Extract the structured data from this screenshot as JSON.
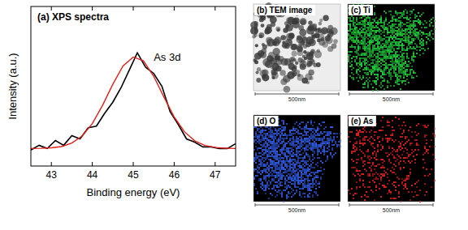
{
  "chart_data": {
    "type": "line",
    "title": "(a) XPS spectra",
    "annotation": "As 3d",
    "x_label": "Binding energy (eV)",
    "y_label": "Intensity (a.u.)",
    "xlim": [
      42.5,
      47.5
    ],
    "xticks": [
      43,
      44,
      45,
      46,
      47
    ],
    "ylim": [
      0,
      1
    ],
    "tick_labels": "x",
    "series": [
      {
        "color": "#000000",
        "line_style": "solid",
        "x": [
          42.5,
          42.7,
          42.9,
          43.1,
          43.3,
          43.5,
          43.7,
          43.9,
          44.1,
          44.3,
          44.5,
          44.7,
          44.9,
          45.1,
          45.3,
          45.5,
          45.7,
          45.9,
          46.1,
          46.3,
          46.5,
          46.7,
          46.9,
          47.1,
          47.3,
          47.5
        ],
        "values": [
          0.1,
          0.13,
          0.11,
          0.16,
          0.13,
          0.19,
          0.17,
          0.24,
          0.25,
          0.33,
          0.4,
          0.49,
          0.6,
          0.71,
          0.62,
          0.58,
          0.5,
          0.34,
          0.26,
          0.17,
          0.15,
          0.12,
          0.12,
          0.11,
          0.11,
          0.14
        ]
      },
      {
        "color": "#e0201b",
        "line_style": "solid",
        "x": [
          42.5,
          42.75,
          43.0,
          43.25,
          43.5,
          43.75,
          44.0,
          44.25,
          44.5,
          44.75,
          45.0,
          45.25,
          45.5,
          45.75,
          46.0,
          46.25,
          46.5,
          46.75,
          47.0,
          47.25,
          47.5
        ],
        "values": [
          0.11,
          0.111,
          0.114,
          0.122,
          0.144,
          0.188,
          0.266,
          0.38,
          0.512,
          0.627,
          0.683,
          0.659,
          0.562,
          0.432,
          0.307,
          0.215,
          0.158,
          0.129,
          0.116,
          0.112,
          0.11
        ]
      }
    ]
  },
  "images": [
    {
      "title": "(b) TEM image",
      "scale_label": "500nm",
      "color": "#3a3a3a"
    },
    {
      "title": "(c) Ti",
      "scale_label": "500nm",
      "color": "#22c83a"
    },
    {
      "title": "(d) O",
      "scale_label": "500nm",
      "color": "#2f5ae0"
    },
    {
      "title": "(e) As",
      "scale_label": "500nm",
      "color": "#e02020"
    }
  ]
}
